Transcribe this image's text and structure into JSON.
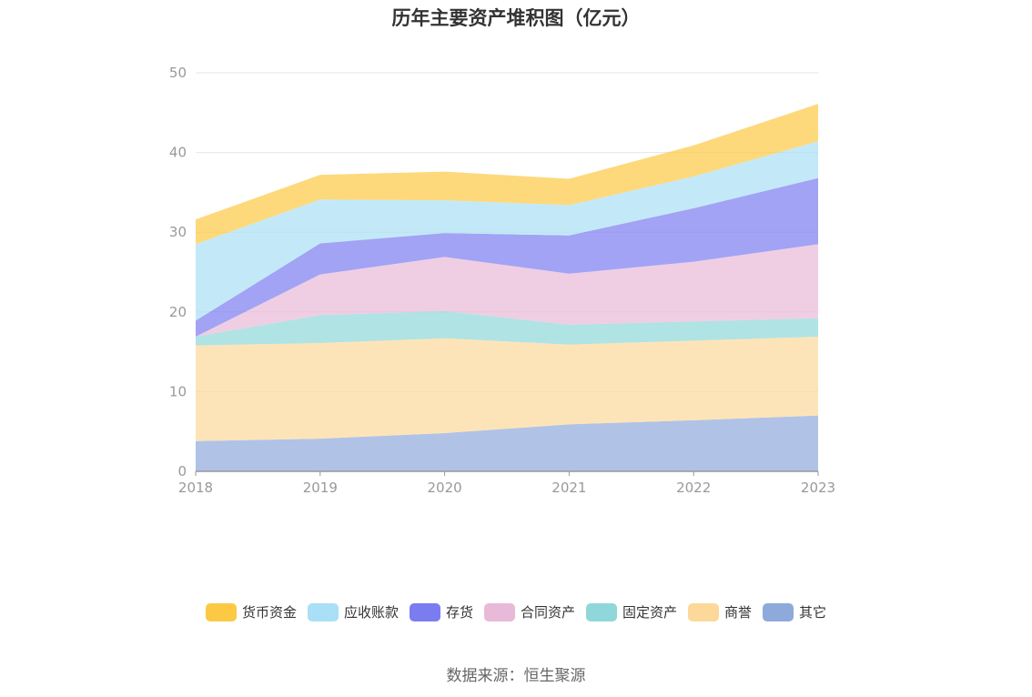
{
  "chart_data": {
    "type": "area",
    "stacked": true,
    "title": "历年主要资产堆积图（亿元）",
    "x": [
      "2018",
      "2019",
      "2020",
      "2021",
      "2022",
      "2023"
    ],
    "ylim": [
      0,
      50
    ],
    "yticks": [
      0,
      10,
      20,
      30,
      40,
      50
    ],
    "grid": true,
    "legend_position": "bottom",
    "series": [
      {
        "name": "其它",
        "color": "#8eaadb",
        "values": [
          3.8,
          4.1,
          4.8,
          5.9,
          6.4,
          7.0
        ]
      },
      {
        "name": "商誉",
        "color": "#fcd89a",
        "values": [
          12.0,
          12.0,
          11.9,
          10.0,
          10.0,
          9.9
        ]
      },
      {
        "name": "固定资产",
        "color": "#8fd7d9",
        "values": [
          1.1,
          3.5,
          3.4,
          2.5,
          2.4,
          2.3
        ]
      },
      {
        "name": "合同资产",
        "color": "#e8b9d8",
        "values": [
          0.0,
          5.1,
          6.8,
          6.4,
          7.5,
          9.3
        ]
      },
      {
        "name": "存货",
        "color": "#7b7cf0",
        "values": [
          2.0,
          3.9,
          3.0,
          4.8,
          6.7,
          8.3
        ]
      },
      {
        "name": "应收账款",
        "color": "#a9dff7",
        "values": [
          9.6,
          5.5,
          4.1,
          3.8,
          4.0,
          4.6
        ]
      },
      {
        "name": "货币资金",
        "color": "#fcc945",
        "values": [
          3.1,
          3.1,
          3.6,
          3.3,
          3.9,
          4.7
        ]
      }
    ],
    "legend_order": [
      "货币资金",
      "应收账款",
      "存货",
      "合同资产",
      "固定资产",
      "商誉",
      "其它"
    ]
  },
  "source_text": "数据来源：恒生聚源"
}
